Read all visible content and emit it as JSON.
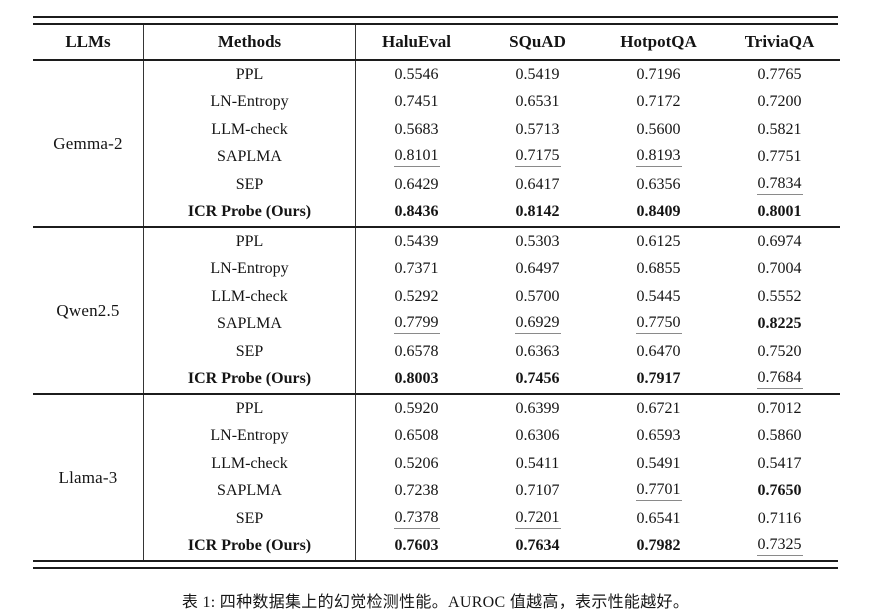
{
  "table": {
    "columns": [
      "LLMs",
      "Methods",
      "HaluEval",
      "SQuAD",
      "HotpotQA",
      "TriviaQA"
    ],
    "groups": [
      {
        "llm": "Gemma-2",
        "rows": [
          {
            "method": "PPL",
            "bold": false,
            "values": [
              {
                "v": "0.5546",
                "style": "plain"
              },
              {
                "v": "0.5419",
                "style": "plain"
              },
              {
                "v": "0.7196",
                "style": "plain"
              },
              {
                "v": "0.7765",
                "style": "plain"
              }
            ]
          },
          {
            "method": "LN-Entropy",
            "bold": false,
            "values": [
              {
                "v": "0.7451",
                "style": "plain"
              },
              {
                "v": "0.6531",
                "style": "plain"
              },
              {
                "v": "0.7172",
                "style": "plain"
              },
              {
                "v": "0.7200",
                "style": "plain"
              }
            ]
          },
          {
            "method": "LLM-check",
            "bold": false,
            "values": [
              {
                "v": "0.5683",
                "style": "plain"
              },
              {
                "v": "0.5713",
                "style": "plain"
              },
              {
                "v": "0.5600",
                "style": "plain"
              },
              {
                "v": "0.5821",
                "style": "plain"
              }
            ]
          },
          {
            "method": "SAPLMA",
            "bold": false,
            "values": [
              {
                "v": "0.8101",
                "style": "underline"
              },
              {
                "v": "0.7175",
                "style": "underline"
              },
              {
                "v": "0.8193",
                "style": "underline"
              },
              {
                "v": "0.7751",
                "style": "plain"
              }
            ]
          },
          {
            "method": "SEP",
            "bold": false,
            "values": [
              {
                "v": "0.6429",
                "style": "plain"
              },
              {
                "v": "0.6417",
                "style": "plain"
              },
              {
                "v": "0.6356",
                "style": "plain"
              },
              {
                "v": "0.7834",
                "style": "underline"
              }
            ]
          },
          {
            "method": "ICR Probe (Ours)",
            "bold": true,
            "values": [
              {
                "v": "0.8436",
                "style": "bold"
              },
              {
                "v": "0.8142",
                "style": "bold"
              },
              {
                "v": "0.8409",
                "style": "bold"
              },
              {
                "v": "0.8001",
                "style": "bold"
              }
            ]
          }
        ]
      },
      {
        "llm": "Qwen2.5",
        "rows": [
          {
            "method": "PPL",
            "bold": false,
            "values": [
              {
                "v": "0.5439",
                "style": "plain"
              },
              {
                "v": "0.5303",
                "style": "plain"
              },
              {
                "v": "0.6125",
                "style": "plain"
              },
              {
                "v": "0.6974",
                "style": "plain"
              }
            ]
          },
          {
            "method": "LN-Entropy",
            "bold": false,
            "values": [
              {
                "v": "0.7371",
                "style": "plain"
              },
              {
                "v": "0.6497",
                "style": "plain"
              },
              {
                "v": "0.6855",
                "style": "plain"
              },
              {
                "v": "0.7004",
                "style": "plain"
              }
            ]
          },
          {
            "method": "LLM-check",
            "bold": false,
            "values": [
              {
                "v": "0.5292",
                "style": "plain"
              },
              {
                "v": "0.5700",
                "style": "plain"
              },
              {
                "v": "0.5445",
                "style": "plain"
              },
              {
                "v": "0.5552",
                "style": "plain"
              }
            ]
          },
          {
            "method": "SAPLMA",
            "bold": false,
            "values": [
              {
                "v": "0.7799",
                "style": "underline"
              },
              {
                "v": "0.6929",
                "style": "underline"
              },
              {
                "v": "0.7750",
                "style": "underline"
              },
              {
                "v": "0.8225",
                "style": "bold"
              }
            ]
          },
          {
            "method": "SEP",
            "bold": false,
            "values": [
              {
                "v": "0.6578",
                "style": "plain"
              },
              {
                "v": "0.6363",
                "style": "plain"
              },
              {
                "v": "0.6470",
                "style": "plain"
              },
              {
                "v": "0.7520",
                "style": "plain"
              }
            ]
          },
          {
            "method": "ICR Probe (Ours)",
            "bold": true,
            "values": [
              {
                "v": "0.8003",
                "style": "bold"
              },
              {
                "v": "0.7456",
                "style": "bold"
              },
              {
                "v": "0.7917",
                "style": "bold"
              },
              {
                "v": "0.7684",
                "style": "underline"
              }
            ]
          }
        ]
      },
      {
        "llm": "Llama-3",
        "rows": [
          {
            "method": "PPL",
            "bold": false,
            "values": [
              {
                "v": "0.5920",
                "style": "plain"
              },
              {
                "v": "0.6399",
                "style": "plain"
              },
              {
                "v": "0.6721",
                "style": "plain"
              },
              {
                "v": "0.7012",
                "style": "plain"
              }
            ]
          },
          {
            "method": "LN-Entropy",
            "bold": false,
            "values": [
              {
                "v": "0.6508",
                "style": "plain"
              },
              {
                "v": "0.6306",
                "style": "plain"
              },
              {
                "v": "0.6593",
                "style": "plain"
              },
              {
                "v": "0.5860",
                "style": "plain"
              }
            ]
          },
          {
            "method": "LLM-check",
            "bold": false,
            "values": [
              {
                "v": "0.5206",
                "style": "plain"
              },
              {
                "v": "0.5411",
                "style": "plain"
              },
              {
                "v": "0.5491",
                "style": "plain"
              },
              {
                "v": "0.5417",
                "style": "plain"
              }
            ]
          },
          {
            "method": "SAPLMA",
            "bold": false,
            "values": [
              {
                "v": "0.7238",
                "style": "plain"
              },
              {
                "v": "0.7107",
                "style": "plain"
              },
              {
                "v": "0.7701",
                "style": "underline"
              },
              {
                "v": "0.7650",
                "style": "bold"
              }
            ]
          },
          {
            "method": "SEP",
            "bold": false,
            "values": [
              {
                "v": "0.7378",
                "style": "underline"
              },
              {
                "v": "0.7201",
                "style": "underline"
              },
              {
                "v": "0.6541",
                "style": "plain"
              },
              {
                "v": "0.7116",
                "style": "plain"
              }
            ]
          },
          {
            "method": "ICR Probe (Ours)",
            "bold": true,
            "values": [
              {
                "v": "0.7603",
                "style": "bold"
              },
              {
                "v": "0.7634",
                "style": "bold"
              },
              {
                "v": "0.7982",
                "style": "bold"
              },
              {
                "v": "0.7325",
                "style": "underline"
              }
            ]
          }
        ]
      }
    ]
  },
  "caption": "表 1: 四种数据集上的幻觉检测性能。AUROC 值越高，表示性能越好。"
}
